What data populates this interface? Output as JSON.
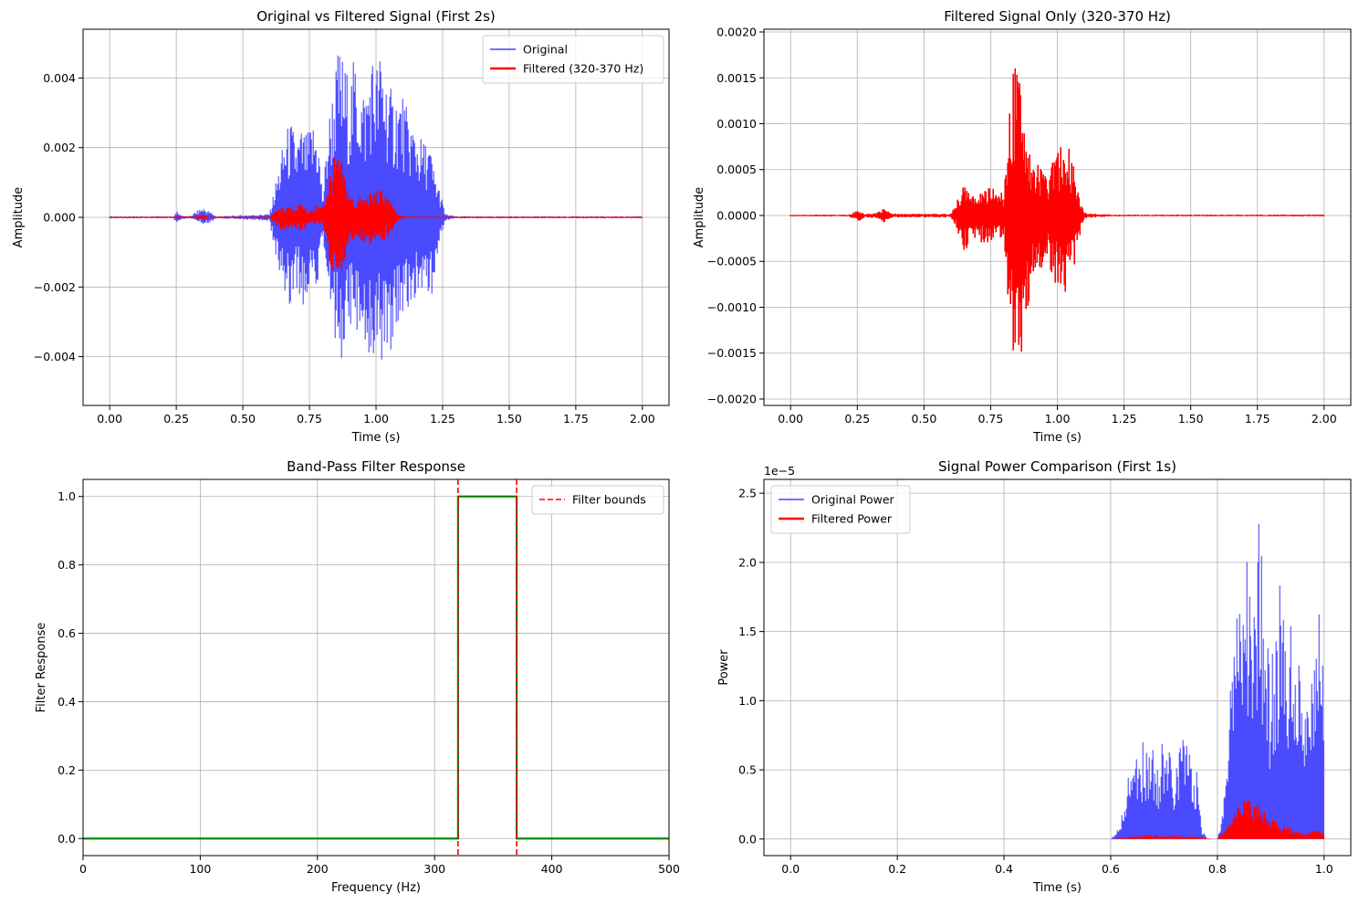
{
  "chart_data": [
    {
      "type": "line",
      "title": "Original vs Filtered Signal (First 2s)",
      "xlabel": "Time (s)",
      "ylabel": "Amplitude",
      "xlim": [
        -0.1,
        2.1
      ],
      "ylim": [
        -0.0054,
        0.0054
      ],
      "xticks": [
        0.0,
        0.25,
        0.5,
        0.75,
        1.0,
        1.25,
        1.5,
        1.75,
        2.0
      ],
      "xtick_labels": [
        "0.00",
        "0.25",
        "0.50",
        "0.75",
        "1.00",
        "1.25",
        "1.50",
        "1.75",
        "2.00"
      ],
      "yticks": [
        -0.004,
        -0.002,
        0.0,
        0.002,
        0.004
      ],
      "ytick_labels": [
        "−0.004",
        "−0.002",
        "0.000",
        "0.002",
        "0.004"
      ],
      "grid": true,
      "legend": "top-right",
      "series": [
        {
          "name": "Original",
          "color": "#4040ff",
          "style": "envelope",
          "x": [
            0.0,
            0.24,
            0.25,
            0.26,
            0.28,
            0.3,
            0.33,
            0.35,
            0.38,
            0.4,
            0.6,
            0.62,
            0.64,
            0.66,
            0.68,
            0.7,
            0.72,
            0.74,
            0.76,
            0.78,
            0.8,
            0.82,
            0.84,
            0.86,
            0.88,
            0.9,
            0.92,
            0.94,
            0.96,
            0.98,
            1.0,
            1.02,
            1.04,
            1.06,
            1.08,
            1.1,
            1.12,
            1.14,
            1.16,
            1.18,
            1.2,
            1.22,
            1.24,
            1.26,
            1.3,
            2.0
          ],
          "upper": [
            3e-05,
            3e-05,
            0.0002,
            0.0001,
            5e-05,
            3e-05,
            0.0002,
            0.0003,
            0.00015,
            3e-05,
            0.0001,
            0.0009,
            0.0017,
            0.0025,
            0.0028,
            0.0023,
            0.0026,
            0.0024,
            0.0028,
            0.0027,
            0.0006,
            0.0028,
            0.004,
            0.005,
            0.0046,
            0.004,
            0.0047,
            0.004,
            0.0037,
            0.0049,
            0.0045,
            0.005,
            0.0042,
            0.0036,
            0.0037,
            0.0036,
            0.003,
            0.0028,
            0.0024,
            0.0022,
            0.0022,
            0.0013,
            0.0008,
            0.0001,
            3e-05,
            3e-05
          ],
          "lower": [
            -3e-05,
            -3e-05,
            -0.0002,
            -0.0001,
            -5e-05,
            -3e-05,
            -0.0001,
            -0.0002,
            -0.00015,
            -3e-05,
            -0.0001,
            -0.0012,
            -0.0018,
            -0.0027,
            -0.0025,
            -0.002,
            -0.0026,
            -0.0024,
            -0.0024,
            -0.0022,
            -0.0008,
            -0.0027,
            -0.0035,
            -0.0048,
            -0.0037,
            -0.003,
            -0.0033,
            -0.0035,
            -0.0039,
            -0.0043,
            -0.004,
            -0.0041,
            -0.0044,
            -0.0038,
            -0.0035,
            -0.003,
            -0.0028,
            -0.0024,
            -0.0022,
            -0.002,
            -0.0026,
            -0.0019,
            -0.0008,
            -0.0001,
            -3e-05,
            -3e-05
          ]
        },
        {
          "name": "Filtered (320-370 Hz)",
          "color": "#ff0000",
          "style": "envelope",
          "x": [
            0.0,
            0.24,
            0.26,
            0.28,
            0.33,
            0.35,
            0.37,
            0.6,
            0.63,
            0.66,
            0.69,
            0.72,
            0.74,
            0.76,
            0.78,
            0.8,
            0.82,
            0.84,
            0.86,
            0.88,
            0.9,
            0.92,
            0.94,
            0.96,
            0.98,
            1.0,
            1.03,
            1.06,
            1.08,
            1.1,
            1.2,
            2.0
          ],
          "upper": [
            2e-05,
            2e-05,
            3e-05,
            2e-05,
            4e-05,
            8e-05,
            2e-05,
            2e-05,
            0.00025,
            0.0003,
            0.0003,
            0.0004,
            0.00025,
            0.0002,
            0.0004,
            0.0003,
            0.0011,
            0.0017,
            0.0018,
            0.0014,
            0.0007,
            0.0005,
            0.0006,
            0.0006,
            0.0007,
            0.0008,
            0.0008,
            0.0004,
            0.0001,
            3e-05,
            2e-05,
            2e-05
          ],
          "lower": [
            -2e-05,
            -2e-05,
            -3e-05,
            -2e-05,
            -4e-05,
            -7e-05,
            -2e-05,
            -2e-05,
            -0.00028,
            -0.0004,
            -0.0003,
            -0.0004,
            -0.0003,
            -0.0002,
            -0.0002,
            -0.0002,
            -0.0012,
            -0.0017,
            -0.0018,
            -0.0014,
            -0.0008,
            -0.0006,
            -0.0006,
            -0.0008,
            -0.0008,
            -0.0008,
            -0.0007,
            -0.0004,
            -0.0001,
            -3e-05,
            -2e-05,
            -2e-05
          ]
        }
      ]
    },
    {
      "type": "line",
      "title": "Filtered Signal Only (320-370 Hz)",
      "xlabel": "Time (s)",
      "ylabel": "Amplitude",
      "xlim": [
        -0.1,
        2.1
      ],
      "ylim": [
        -0.00207,
        0.00203
      ],
      "xticks": [
        0.0,
        0.25,
        0.5,
        0.75,
        1.0,
        1.25,
        1.5,
        1.75,
        2.0
      ],
      "xtick_labels": [
        "0.00",
        "0.25",
        "0.50",
        "0.75",
        "1.00",
        "1.25",
        "1.50",
        "1.75",
        "2.00"
      ],
      "yticks": [
        -0.002,
        -0.0015,
        -0.001,
        -0.0005,
        0.0,
        0.0005,
        0.001,
        0.0015,
        0.002
      ],
      "ytick_labels": [
        "−0.0020",
        "−0.0015",
        "−0.0010",
        "−0.0005",
        "0.0000",
        "0.0005",
        "0.0010",
        "0.0015",
        "0.0020"
      ],
      "grid": true,
      "series": [
        {
          "color": "#ff0000",
          "style": "envelope",
          "x": [
            0.0,
            0.22,
            0.25,
            0.28,
            0.32,
            0.35,
            0.38,
            0.6,
            0.63,
            0.65,
            0.67,
            0.69,
            0.72,
            0.74,
            0.76,
            0.78,
            0.8,
            0.82,
            0.84,
            0.85,
            0.86,
            0.88,
            0.9,
            0.92,
            0.94,
            0.96,
            0.98,
            1.0,
            1.02,
            1.04,
            1.06,
            1.08,
            1.1,
            1.2,
            2.0
          ],
          "upper": [
            1e-05,
            1e-05,
            6e-05,
            2e-05,
            3e-05,
            8e-05,
            2e-05,
            2e-05,
            0.0002,
            0.0004,
            0.0003,
            0.0002,
            0.0003,
            0.0003,
            0.0003,
            0.0003,
            0.0002,
            0.0012,
            0.0017,
            0.00185,
            0.0017,
            0.0012,
            0.0007,
            0.0006,
            0.0005,
            0.0004,
            0.0006,
            0.0007,
            0.00085,
            0.0008,
            0.0006,
            0.0003,
            3e-05,
            1e-05,
            1e-05
          ],
          "lower": [
            -1e-05,
            -1e-05,
            -7e-05,
            -2e-05,
            -3e-05,
            -8e-05,
            -2e-05,
            -2e-05,
            -0.0002,
            -0.0004,
            -0.00035,
            -0.0003,
            -0.0003,
            -0.0003,
            -0.0003,
            -0.0003,
            -0.0002,
            -0.0012,
            -0.0018,
            -0.0019,
            -0.0017,
            -0.0012,
            -0.0008,
            -0.0006,
            -0.0006,
            -0.0005,
            -0.0007,
            -0.0008,
            -0.0009,
            -0.0008,
            -0.0006,
            -0.0003,
            -3e-05,
            -1e-05,
            -1e-05
          ]
        }
      ]
    },
    {
      "type": "line",
      "title": "Band-Pass Filter Response",
      "xlabel": "Frequency (Hz)",
      "ylabel": "Filter Response",
      "xlim": [
        0,
        500
      ],
      "ylim": [
        -0.05,
        1.05
      ],
      "xticks": [
        0,
        100,
        200,
        300,
        400,
        500
      ],
      "xtick_labels": [
        "0",
        "100",
        "200",
        "300",
        "400",
        "500"
      ],
      "yticks": [
        0.0,
        0.2,
        0.4,
        0.6,
        0.8,
        1.0
      ],
      "ytick_labels": [
        "0.0",
        "0.2",
        "0.4",
        "0.6",
        "0.8",
        "1.0"
      ],
      "grid": true,
      "legend": "top-right",
      "series": [
        {
          "color": "#008000",
          "style": "line",
          "x": [
            0,
            320,
            320,
            370,
            370,
            500
          ],
          "y": [
            0,
            0,
            1,
            1,
            0,
            0
          ]
        },
        {
          "name": "Filter bounds",
          "color": "#ff0000",
          "style": "vlines",
          "x": [
            320,
            370
          ]
        }
      ]
    },
    {
      "type": "line",
      "title": "Signal Power Comparison (First 1s)",
      "xlabel": "Time (s)",
      "ylabel": "Power",
      "offset_text": "1e−5",
      "xlim": [
        -0.05,
        1.05
      ],
      "ylim": [
        -1.2,
        26.0
      ],
      "xticks": [
        0.0,
        0.2,
        0.4,
        0.6,
        0.8,
        1.0
      ],
      "xtick_labels": [
        "0.0",
        "0.2",
        "0.4",
        "0.6",
        "0.8",
        "1.0"
      ],
      "yticks": [
        0.0,
        5.0,
        10.0,
        15.0,
        20.0,
        25.0
      ],
      "ytick_labels": [
        "0.0",
        "0.5",
        "1.0",
        "1.5",
        "2.0",
        "2.5"
      ],
      "grid": true,
      "legend": "top-left",
      "series": [
        {
          "name": "Original Power",
          "color": "#4040ff",
          "style": "envelope",
          "x": [
            0.0,
            0.6,
            0.61,
            0.62,
            0.63,
            0.64,
            0.65,
            0.66,
            0.67,
            0.68,
            0.69,
            0.7,
            0.71,
            0.72,
            0.73,
            0.74,
            0.75,
            0.76,
            0.77,
            0.78,
            0.8,
            0.81,
            0.82,
            0.83,
            0.84,
            0.85,
            0.86,
            0.87,
            0.88,
            0.89,
            0.9,
            0.91,
            0.92,
            0.93,
            0.94,
            0.95,
            0.96,
            0.97,
            0.98,
            0.99,
            1.0
          ],
          "upper": [
            0.0,
            0.0,
            0.5,
            2.0,
            4.0,
            5.5,
            7.0,
            7.5,
            7.0,
            6.5,
            6.0,
            7.5,
            6.5,
            5.0,
            7.0,
            9.0,
            6.0,
            5.5,
            1.0,
            0.0,
            0.0,
            2.0,
            10.0,
            14.0,
            20.0,
            18.0,
            25.0,
            19.0,
            24.0,
            19.0,
            12.0,
            18.0,
            19.0,
            14.0,
            17.5,
            14.0,
            11.0,
            10.0,
            15.0,
            18.5,
            12.0
          ],
          "lower": [
            0,
            0,
            0,
            0,
            0,
            0,
            0,
            0,
            0,
            0,
            0,
            0,
            0,
            0,
            0,
            0,
            0,
            0,
            0,
            0,
            0,
            0,
            0,
            0,
            0,
            0,
            0,
            0,
            0,
            0,
            0,
            0,
            0,
            0,
            0,
            0,
            0,
            0,
            0,
            0,
            0
          ]
        },
        {
          "name": "Filtered Power",
          "color": "#ff0000",
          "style": "envelope",
          "x": [
            0.0,
            0.6,
            0.62,
            0.64,
            0.66,
            0.68,
            0.7,
            0.72,
            0.74,
            0.76,
            0.78,
            0.8,
            0.82,
            0.83,
            0.84,
            0.85,
            0.86,
            0.87,
            0.88,
            0.9,
            0.92,
            0.94,
            0.96,
            0.98,
            1.0
          ],
          "upper": [
            0.0,
            0.0,
            0.1,
            0.2,
            0.3,
            0.3,
            0.2,
            0.3,
            0.2,
            0.2,
            0.05,
            0.0,
            1.0,
            2.0,
            2.8,
            3.2,
            3.5,
            3.0,
            2.4,
            1.5,
            1.0,
            0.8,
            0.4,
            0.6,
            0.6
          ],
          "lower": [
            0,
            0,
            0,
            0,
            0,
            0,
            0,
            0,
            0,
            0,
            0,
            0,
            0,
            0,
            0,
            0,
            0,
            0,
            0,
            0,
            0,
            0,
            0,
            0,
            0
          ]
        }
      ]
    }
  ]
}
